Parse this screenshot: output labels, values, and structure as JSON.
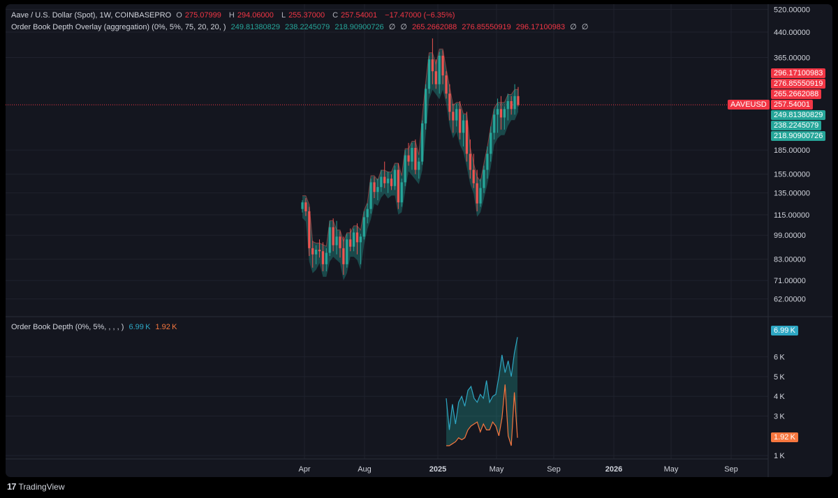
{
  "header": {
    "symbol_title": "Aave / U.S. Dollar (Spot), 1W, COINBASEPRO",
    "o_label": "O",
    "o_value": "275.07999",
    "h_label": "H",
    "h_value": "294.06000",
    "l_label": "L",
    "l_value": "255.37000",
    "c_label": "C",
    "c_value": "257.54001",
    "change": "−17.47000 (−6.35%)"
  },
  "overlay_legend": {
    "title": "Order Book Depth Overlay (aggregation) (0%, 5%, 75, 20, 20, )",
    "v1": "249.81380829",
    "v2": "238.2245079",
    "v3": "218.90900726",
    "na1": "∅",
    "na2": "∅",
    "v4": "265.2662088",
    "v5": "276.85550919",
    "v6": "296.17100983",
    "na3": "∅",
    "na4": "∅"
  },
  "depth_legend": {
    "title": "Order Book Depth (0%, 5%, , , , )",
    "v1": "6.99 K",
    "v2": "1.92 K"
  },
  "colors": {
    "up": "#26a69a",
    "down": "#ef5350",
    "bid": "#2ea7c4",
    "ask": "#f7773f",
    "bg": "#14161f"
  },
  "price_axis": {
    "ticks": [
      "520.00000",
      "440.00000",
      "365.00000",
      "185.00000",
      "155.00000",
      "135.00000",
      "115.00000",
      "99.00000",
      "83.00000",
      "71.00000",
      "62.00000"
    ],
    "tags": [
      {
        "text": "296.17100983",
        "color": "#f23645"
      },
      {
        "text": "276.85550919",
        "color": "#f23645"
      },
      {
        "text": "265.2662088",
        "color": "#f23645"
      },
      {
        "text": "257.54001",
        "color": "#f23645"
      },
      {
        "text": "249.81380829",
        "color": "#26a69a"
      },
      {
        "text": "238.2245079",
        "color": "#26a69a"
      },
      {
        "text": "218.90900726",
        "color": "#26a69a"
      }
    ],
    "symbol_tag": "AAVEUSD"
  },
  "depth_axis": {
    "ticks": [
      "6 K",
      "5 K",
      "4 K",
      "3 K",
      "1 K"
    ],
    "tag_top": "6.99 K",
    "tag_bottom": "1.92 K"
  },
  "time_axis": {
    "labels": [
      {
        "text": "Apr",
        "bold": false
      },
      {
        "text": "Aug",
        "bold": false
      },
      {
        "text": "2025",
        "bold": true
      },
      {
        "text": "May",
        "bold": false
      },
      {
        "text": "Sep",
        "bold": false
      },
      {
        "text": "2026",
        "bold": true
      },
      {
        "text": "May",
        "bold": false
      },
      {
        "text": "Sep",
        "bold": false
      }
    ]
  },
  "footer": {
    "brand": "TradingView",
    "logo": "17"
  },
  "chart_data": {
    "type": "candlestick",
    "scale": "log",
    "ylim": [
      55,
      540
    ],
    "candles": [
      [
        120,
        128,
        117,
        126
      ],
      [
        126,
        130,
        114,
        118
      ],
      [
        118,
        122,
        85,
        90
      ],
      [
        90,
        95,
        78,
        86
      ],
      [
        86,
        92,
        80,
        89
      ],
      [
        89,
        96,
        84,
        88
      ],
      [
        88,
        94,
        76,
        80
      ],
      [
        80,
        90,
        76,
        87
      ],
      [
        87,
        110,
        85,
        105
      ],
      [
        105,
        112,
        88,
        92
      ],
      [
        92,
        110,
        86,
        98
      ],
      [
        98,
        102,
        84,
        90
      ],
      [
        90,
        98,
        74,
        80
      ],
      [
        80,
        100,
        78,
        96
      ],
      [
        96,
        104,
        88,
        91
      ],
      [
        91,
        104,
        88,
        101
      ],
      [
        101,
        108,
        86,
        94
      ],
      [
        94,
        100,
        80,
        98
      ],
      [
        98,
        118,
        96,
        113
      ],
      [
        113,
        125,
        108,
        120
      ],
      [
        120,
        150,
        116,
        146
      ],
      [
        146,
        152,
        130,
        136
      ],
      [
        136,
        150,
        128,
        141
      ],
      [
        141,
        160,
        136,
        152
      ],
      [
        152,
        170,
        140,
        145
      ],
      [
        145,
        158,
        135,
        150
      ],
      [
        150,
        155,
        138,
        142
      ],
      [
        142,
        165,
        138,
        160
      ],
      [
        160,
        168,
        120,
        126
      ],
      [
        126,
        150,
        122,
        146
      ],
      [
        146,
        185,
        142,
        178
      ],
      [
        178,
        195,
        165,
        170
      ],
      [
        170,
        195,
        160,
        188
      ],
      [
        188,
        200,
        155,
        160
      ],
      [
        160,
        175,
        150,
        170
      ],
      [
        170,
        230,
        166,
        225
      ],
      [
        225,
        300,
        215,
        290
      ],
      [
        290,
        370,
        280,
        360
      ],
      [
        360,
        420,
        300,
        330
      ],
      [
        330,
        360,
        290,
        300
      ],
      [
        300,
        380,
        280,
        370
      ],
      [
        370,
        385,
        300,
        320
      ],
      [
        320,
        330,
        270,
        280
      ],
      [
        280,
        300,
        230,
        245
      ],
      [
        245,
        260,
        210,
        230
      ],
      [
        230,
        260,
        220,
        250
      ],
      [
        250,
        265,
        200,
        210
      ],
      [
        210,
        240,
        190,
        230
      ],
      [
        230,
        245,
        170,
        180
      ],
      [
        180,
        200,
        150,
        160
      ],
      [
        160,
        180,
        140,
        145
      ],
      [
        145,
        160,
        118,
        125
      ],
      [
        125,
        150,
        122,
        140
      ],
      [
        140,
        165,
        135,
        160
      ],
      [
        160,
        190,
        150,
        180
      ],
      [
        180,
        220,
        170,
        210
      ],
      [
        210,
        250,
        200,
        240
      ],
      [
        240,
        270,
        210,
        250
      ],
      [
        250,
        275,
        215,
        235
      ],
      [
        235,
        255,
        215,
        250
      ],
      [
        250,
        280,
        230,
        265
      ],
      [
        265,
        275,
        240,
        250
      ],
      [
        250,
        300,
        240,
        275
      ],
      [
        275,
        294,
        255,
        258
      ]
    ],
    "depth": {
      "bid_k": [
        3.9,
        2.3,
        3.6,
        2.6,
        3.7,
        4.0,
        3.5,
        4.3,
        4.5,
        3.9,
        3.7,
        4.1,
        3.9,
        4.8,
        3.7,
        4.0,
        4.1,
        5.0,
        6.1,
        5.2,
        5.8,
        5.0,
        6.2,
        7.0
      ],
      "ask_k": [
        1.5,
        1.5,
        1.6,
        1.7,
        1.9,
        1.8,
        1.9,
        2.3,
        2.5,
        2.6,
        2.7,
        2.2,
        2.6,
        2.3,
        2.3,
        2.7,
        2.5,
        2.0,
        2.9,
        4.6,
        2.0,
        1.5,
        4.2,
        1.9
      ],
      "ylim": [
        0.9,
        7.4
      ]
    }
  }
}
